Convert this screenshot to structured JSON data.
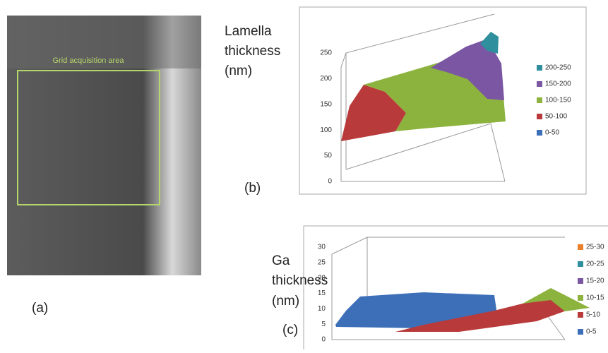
{
  "panel_a": {
    "annotation": "Grid acquisition area",
    "label": "(a)"
  },
  "panel_b": {
    "axis_title": [
      "Lamella",
      "thickness",
      "(nm)"
    ],
    "label": "(b)",
    "yticks": [
      0,
      50,
      100,
      150,
      200,
      250
    ],
    "legend": [
      {
        "name": "200-250",
        "color": "#2f8f9d"
      },
      {
        "name": "150-200",
        "color": "#7a56a3"
      },
      {
        "name": "100-150",
        "color": "#8db33f"
      },
      {
        "name": "50-100",
        "color": "#b93a3a"
      },
      {
        "name": "0-50",
        "color": "#3d6fb8"
      }
    ]
  },
  "panel_c": {
    "axis_title": [
      "Ga",
      "thickness",
      "(nm)"
    ],
    "label": "(c)",
    "yticks": [
      0,
      5,
      10,
      15,
      20,
      25,
      30
    ],
    "legend": [
      {
        "name": "25-30",
        "color": "#e8802c"
      },
      {
        "name": "20-25",
        "color": "#2f8f9d"
      },
      {
        "name": "15-20",
        "color": "#7a56a3"
      },
      {
        "name": "10-15",
        "color": "#8db33f"
      },
      {
        "name": "5-10",
        "color": "#b93a3a"
      },
      {
        "name": "0-5",
        "color": "#3d6fb8"
      }
    ]
  }
}
